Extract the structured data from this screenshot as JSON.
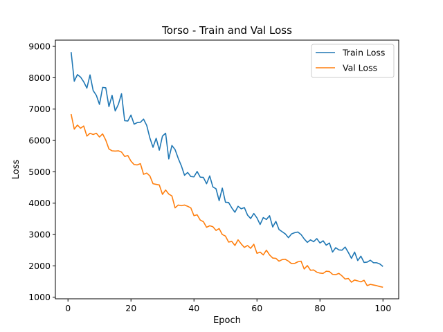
{
  "chart_data": {
    "type": "line",
    "title": "Torso - Train and Val Loss",
    "xlabel": "Epoch",
    "ylabel": "Loss",
    "xlim": [
      -4,
      105
    ],
    "ylim": [
      950,
      9200
    ],
    "xticks": [
      0,
      20,
      40,
      60,
      80,
      100
    ],
    "yticks": [
      1000,
      2000,
      3000,
      4000,
      5000,
      6000,
      7000,
      8000,
      9000
    ],
    "grid": false,
    "legend_position": "top-right",
    "series": [
      {
        "name": "Train Loss",
        "color": "#1f77b4",
        "x": [
          1,
          2,
          3,
          4,
          5,
          6,
          7,
          8,
          9,
          10,
          11,
          12,
          13,
          14,
          15,
          16,
          17,
          18,
          19,
          20,
          21,
          22,
          23,
          24,
          25,
          26,
          27,
          28,
          29,
          30,
          31,
          32,
          33,
          34,
          35,
          36,
          37,
          38,
          39,
          40,
          41,
          42,
          43,
          44,
          45,
          46,
          47,
          48,
          49,
          50,
          51,
          52,
          53,
          54,
          55,
          56,
          57,
          58,
          59,
          60,
          61,
          62,
          63,
          64,
          65,
          66,
          67,
          68,
          69,
          70,
          71,
          72,
          73,
          74,
          75,
          76,
          77,
          78,
          79,
          80,
          81,
          82,
          83,
          84,
          85,
          86,
          87,
          88,
          89,
          90,
          91,
          92,
          93,
          94,
          95,
          96,
          97,
          98,
          99,
          100
        ],
        "values": [
          8820,
          7890,
          8100,
          8020,
          7870,
          7670,
          8090,
          7590,
          7440,
          7150,
          7690,
          7680,
          7080,
          7440,
          6940,
          7150,
          7490,
          6630,
          6620,
          6810,
          6520,
          6570,
          6580,
          6680,
          6480,
          6080,
          5780,
          6070,
          5690,
          6140,
          6230,
          5410,
          5840,
          5710,
          5430,
          5190,
          4890,
          4980,
          4850,
          4840,
          5010,
          4830,
          4820,
          4620,
          4870,
          4520,
          4460,
          4080,
          4480,
          4030,
          4020,
          3850,
          3710,
          3900,
          3820,
          3860,
          3620,
          3510,
          3670,
          3530,
          3320,
          3540,
          3480,
          3600,
          3240,
          3420,
          3160,
          3090,
          3020,
          2900,
          3020,
          3060,
          3080,
          3000,
          2860,
          2750,
          2830,
          2770,
          2870,
          2730,
          2800,
          2660,
          2730,
          2440,
          2580,
          2510,
          2500,
          2600,
          2430,
          2240,
          2440,
          2170,
          2310,
          2110,
          2120,
          2180,
          2100,
          2100,
          2060,
          1980
        ]
      },
      {
        "name": "Val Loss",
        "color": "#ff7f0e",
        "x": [
          1,
          2,
          3,
          4,
          5,
          6,
          7,
          8,
          9,
          10,
          11,
          12,
          13,
          14,
          15,
          16,
          17,
          18,
          19,
          20,
          21,
          22,
          23,
          24,
          25,
          26,
          27,
          28,
          29,
          30,
          31,
          32,
          33,
          34,
          35,
          36,
          37,
          38,
          39,
          40,
          41,
          42,
          43,
          44,
          45,
          46,
          47,
          48,
          49,
          50,
          51,
          52,
          53,
          54,
          55,
          56,
          57,
          58,
          59,
          60,
          61,
          62,
          63,
          64,
          65,
          66,
          67,
          68,
          69,
          70,
          71,
          72,
          73,
          74,
          75,
          76,
          77,
          78,
          79,
          80,
          81,
          82,
          83,
          84,
          85,
          86,
          87,
          88,
          89,
          90,
          91,
          92,
          93,
          94,
          95,
          96,
          97,
          98,
          99,
          100
        ],
        "values": [
          6840,
          6360,
          6490,
          6390,
          6460,
          6140,
          6230,
          6190,
          6230,
          6110,
          6210,
          6010,
          5730,
          5670,
          5660,
          5670,
          5630,
          5490,
          5520,
          5340,
          5230,
          5220,
          5260,
          4920,
          4960,
          4870,
          4620,
          4600,
          4580,
          4280,
          4420,
          4290,
          4230,
          3850,
          3940,
          3920,
          3940,
          3900,
          3850,
          3600,
          3630,
          3460,
          3410,
          3230,
          3280,
          3250,
          3130,
          3190,
          3000,
          2950,
          2760,
          2780,
          2650,
          2830,
          2700,
          2590,
          2650,
          2560,
          2690,
          2400,
          2440,
          2350,
          2500,
          2350,
          2250,
          2240,
          2150,
          2200,
          2210,
          2150,
          2070,
          2080,
          2130,
          2150,
          1900,
          2010,
          1860,
          1870,
          1800,
          1770,
          1760,
          1830,
          1820,
          1730,
          1720,
          1760,
          1680,
          1580,
          1600,
          1480,
          1550,
          1520,
          1490,
          1540,
          1370,
          1410,
          1390,
          1370,
          1340,
          1320
        ]
      }
    ]
  }
}
